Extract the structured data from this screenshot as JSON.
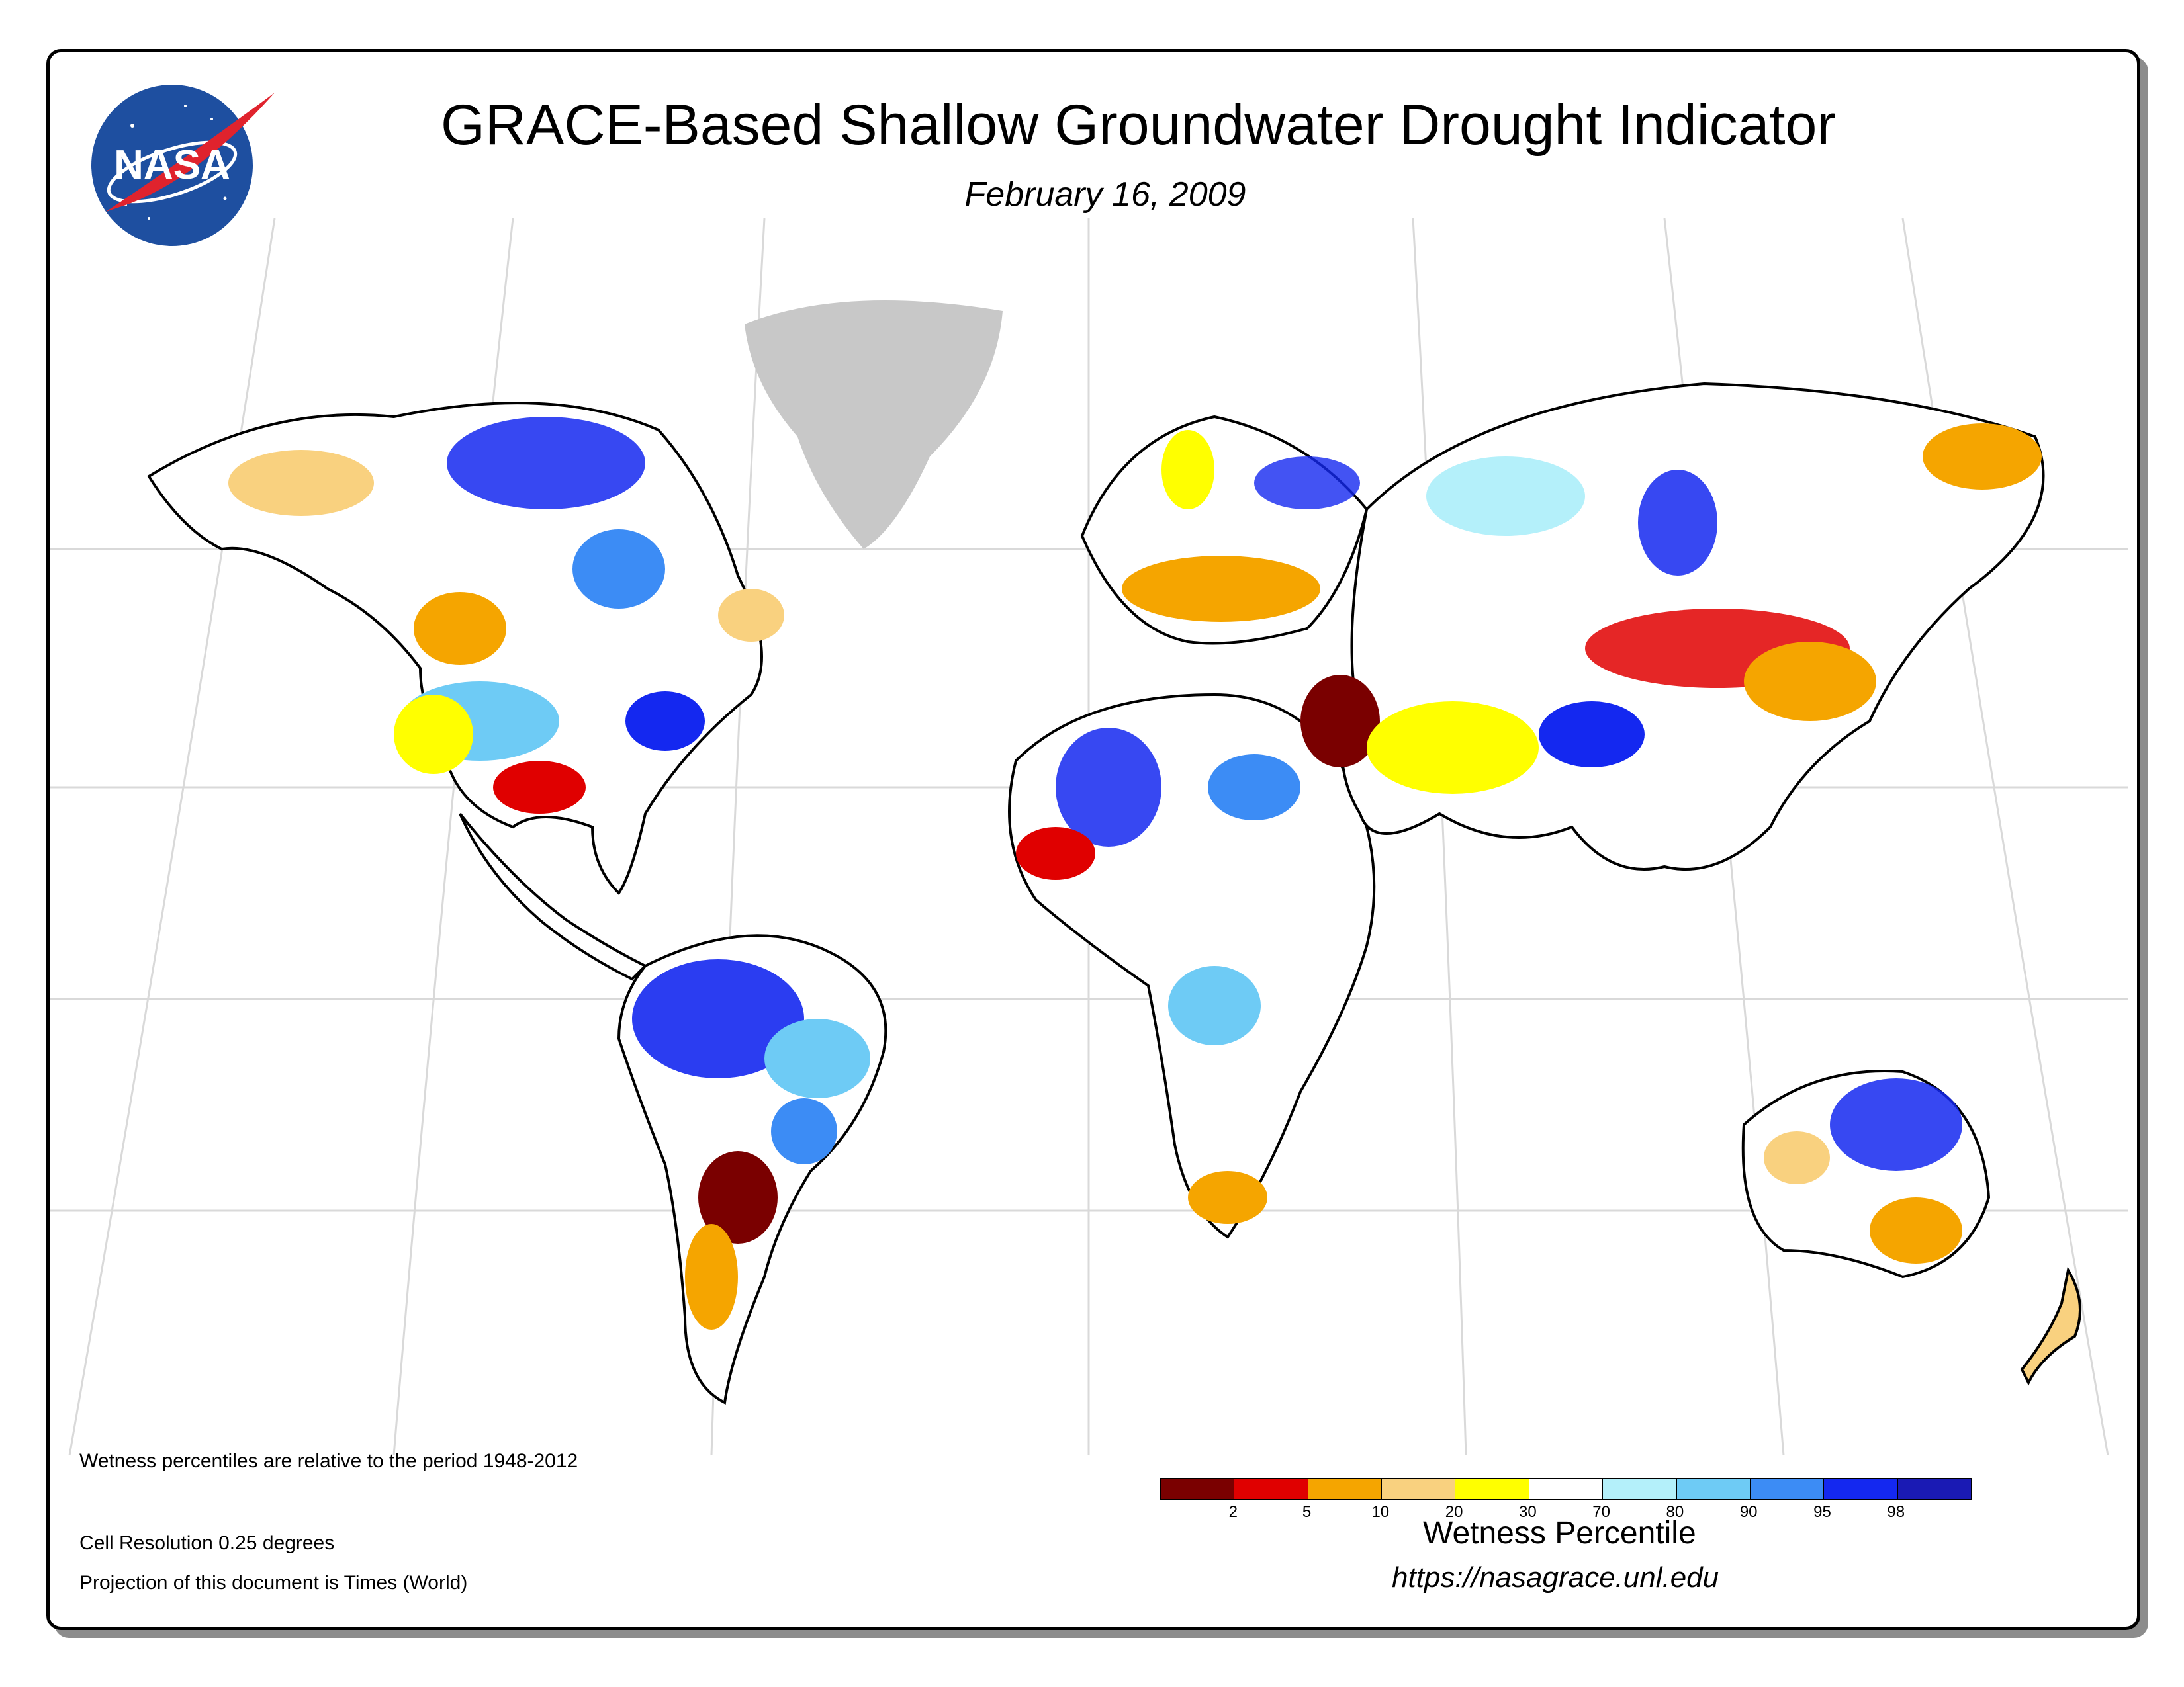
{
  "title": "GRACE-Based Shallow Groundwater Drought Indicator",
  "date": "February 16, 2009",
  "logo_text": "NASA",
  "notes": {
    "period": "Wetness percentiles are relative to the period 1948-2012",
    "resolution": "Cell Resolution 0.25 degrees",
    "projection": "Projection of this document is Times (World)"
  },
  "legend": {
    "title": "Wetness Percentile",
    "ticks": [
      "2",
      "5",
      "10",
      "20",
      "30",
      "70",
      "80",
      "90",
      "95",
      "98"
    ],
    "colors": [
      "#7a0000",
      "#e00000",
      "#f5a500",
      "#f9d17f",
      "#ffff00",
      "#ffffff",
      "#b4f0fa",
      "#6ecbf5",
      "#3c8cf5",
      "#1428f0",
      "#1a1ab4"
    ]
  },
  "url": "https://nasagrace.unl.edu",
  "colors": {
    "greenland": "#c8c8c8",
    "graticule": "#d9d9d9",
    "coast": "#000000"
  }
}
